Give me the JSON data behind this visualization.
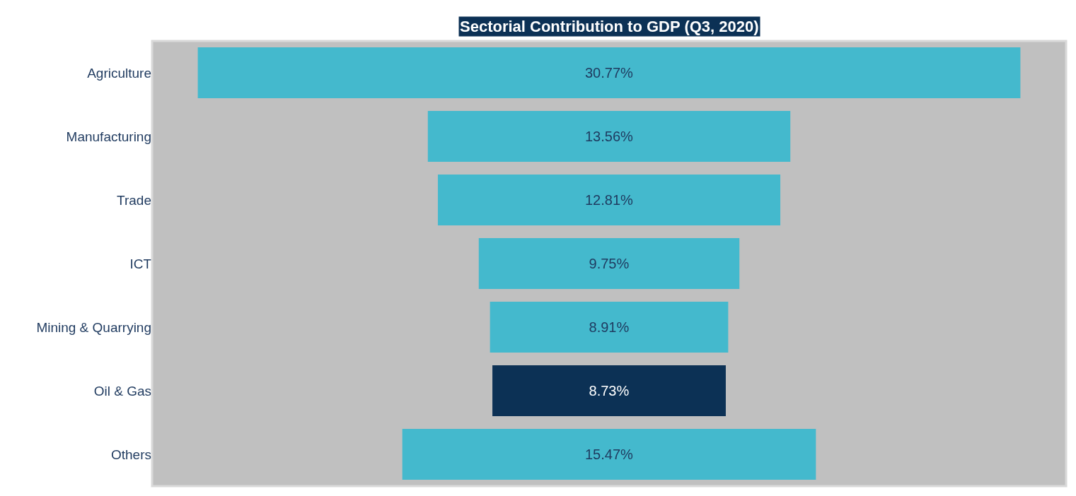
{
  "chart_data": {
    "type": "other",
    "title": "Sectorial Contribution to GDP (Q3, 2020)",
    "categories": [
      "Agriculture",
      "Manufacturing",
      "Trade",
      "ICT",
      "Mining & Quarrying",
      "Oil & Gas",
      "Others"
    ],
    "values": [
      30.77,
      13.56,
      12.81,
      9.75,
      8.91,
      8.73,
      15.47
    ],
    "value_labels": [
      "30.77%",
      "13.56%",
      "12.81%",
      "9.75%",
      "8.91%",
      "8.73%",
      "15.47%"
    ],
    "colors": [
      "#44b9cd",
      "#44b9cd",
      "#44b9cd",
      "#44b9cd",
      "#44b9cd",
      "#0c3155",
      "#44b9cd"
    ]
  }
}
